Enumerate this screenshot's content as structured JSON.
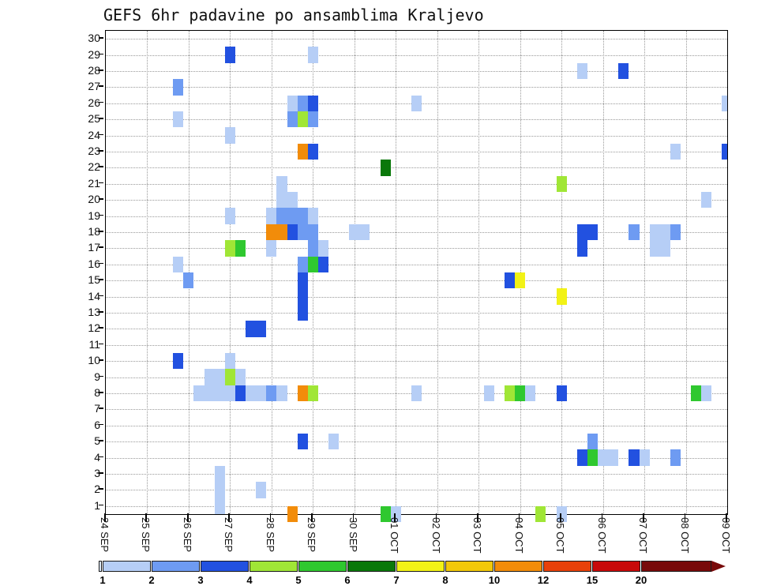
{
  "chart_data": {
    "type": "heatmap",
    "title": "GEFS 6hr padavine po ansamblima Kraljevo",
    "description": "GEFS ensemble 6-hour precipitation per member, Kraljevo; x = time (6h steps), y = ensemble member, color = precipitation amount (mm)",
    "x_axis": {
      "labels": [
        "24 SEP",
        "25 SEP",
        "26 SEP",
        "27 SEP",
        "28 SEP",
        "29 SEP",
        "30 SEP",
        "01 OCT",
        "02 OCT",
        "03 OCT",
        "04 OCT",
        "05 OCT",
        "06 OCT",
        "07 OCT",
        "08 OCT",
        "09 OCT"
      ],
      "steps_per_day": 4,
      "total_steps": 60
    },
    "y_axis": {
      "labels": [
        "1",
        "2",
        "3",
        "4",
        "5",
        "6",
        "7",
        "8",
        "9",
        "10",
        "11",
        "12",
        "13",
        "14",
        "15",
        "16",
        "17",
        "18",
        "19",
        "20",
        "21",
        "22",
        "23",
        "24",
        "25",
        "26",
        "27",
        "28",
        "29",
        "30"
      ],
      "min": 1,
      "max": 30
    },
    "colorbar": {
      "values": [
        "1",
        "2",
        "3",
        "4",
        "5",
        "6",
        "7",
        "8",
        "10",
        "12",
        "15",
        "20"
      ],
      "colors": [
        "#b6cef6",
        "#6e9bf2",
        "#2251e0",
        "#a0e636",
        "#2fc82f",
        "#0a780a",
        "#f2f216",
        "#f2c80a",
        "#f28c0a",
        "#e8410a",
        "#c80a0a",
        "#780a0a"
      ],
      "underflow": "#dce8fa"
    },
    "grid": {
      "horizontal": "dotted per member row",
      "vertical": "dotted per day"
    },
    "cells": [
      [
        12,
        29,
        3
      ],
      [
        20,
        29,
        1
      ],
      [
        46,
        28,
        1
      ],
      [
        50,
        28,
        3
      ],
      [
        7,
        27,
        2
      ],
      [
        18,
        26,
        1
      ],
      [
        19,
        26,
        2
      ],
      [
        20,
        26,
        3
      ],
      [
        30,
        26,
        1
      ],
      [
        60,
        26,
        1
      ],
      [
        7,
        25,
        1
      ],
      [
        18,
        25,
        2
      ],
      [
        19,
        25,
        4
      ],
      [
        20,
        25,
        2
      ],
      [
        12,
        24,
        1
      ],
      [
        19,
        23,
        10
      ],
      [
        20,
        23,
        3
      ],
      [
        55,
        23,
        1
      ],
      [
        60,
        23,
        3
      ],
      [
        27,
        22,
        6
      ],
      [
        17,
        21,
        1
      ],
      [
        44,
        21,
        4
      ],
      [
        17,
        20,
        1
      ],
      [
        18,
        20,
        1
      ],
      [
        58,
        20,
        1
      ],
      [
        12,
        19,
        1
      ],
      [
        16,
        19,
        1
      ],
      [
        17,
        19,
        2
      ],
      [
        18,
        19,
        2
      ],
      [
        19,
        19,
        2
      ],
      [
        20,
        19,
        1
      ],
      [
        16,
        18,
        10
      ],
      [
        17,
        18,
        10
      ],
      [
        18,
        18,
        3
      ],
      [
        19,
        18,
        2
      ],
      [
        20,
        18,
        2
      ],
      [
        24,
        18,
        1
      ],
      [
        25,
        18,
        1
      ],
      [
        46,
        18,
        3
      ],
      [
        47,
        18,
        3
      ],
      [
        51,
        18,
        2
      ],
      [
        53,
        18,
        1
      ],
      [
        54,
        18,
        1
      ],
      [
        55,
        18,
        2
      ],
      [
        12,
        17,
        4
      ],
      [
        13,
        17,
        5
      ],
      [
        16,
        17,
        1
      ],
      [
        20,
        17,
        2
      ],
      [
        21,
        17,
        1
      ],
      [
        46,
        17,
        3
      ],
      [
        53,
        17,
        1
      ],
      [
        54,
        17,
        1
      ],
      [
        7,
        16,
        1
      ],
      [
        19,
        16,
        2
      ],
      [
        20,
        16,
        5
      ],
      [
        21,
        16,
        3
      ],
      [
        8,
        15,
        2
      ],
      [
        19,
        15,
        3
      ],
      [
        39,
        15,
        3
      ],
      [
        40,
        15,
        7
      ],
      [
        19,
        14,
        3
      ],
      [
        44,
        14,
        7
      ],
      [
        19,
        13,
        3
      ],
      [
        14,
        12,
        3
      ],
      [
        15,
        12,
        3
      ],
      [
        7,
        10,
        3
      ],
      [
        12,
        10,
        1
      ],
      [
        10,
        9,
        1
      ],
      [
        11,
        9,
        1
      ],
      [
        12,
        9,
        4
      ],
      [
        13,
        9,
        1
      ],
      [
        9,
        8,
        1
      ],
      [
        10,
        8,
        1
      ],
      [
        11,
        8,
        1
      ],
      [
        12,
        8,
        1
      ],
      [
        13,
        8,
        3
      ],
      [
        14,
        8,
        1
      ],
      [
        15,
        8,
        1
      ],
      [
        16,
        8,
        2
      ],
      [
        17,
        8,
        1
      ],
      [
        19,
        8,
        10
      ],
      [
        20,
        8,
        4
      ],
      [
        30,
        8,
        1
      ],
      [
        37,
        8,
        1
      ],
      [
        39,
        8,
        4
      ],
      [
        40,
        8,
        5
      ],
      [
        41,
        8,
        1
      ],
      [
        44,
        8,
        3
      ],
      [
        57,
        8,
        5
      ],
      [
        58,
        8,
        1
      ],
      [
        19,
        5,
        3
      ],
      [
        22,
        5,
        1
      ],
      [
        47,
        5,
        2
      ],
      [
        46,
        4,
        3
      ],
      [
        47,
        4,
        5
      ],
      [
        48,
        4,
        1
      ],
      [
        49,
        4,
        1
      ],
      [
        51,
        4,
        3
      ],
      [
        52,
        4,
        1
      ],
      [
        55,
        4,
        2
      ],
      [
        11,
        3,
        1
      ],
      [
        11,
        2,
        1
      ],
      [
        15,
        2,
        1
      ],
      [
        11,
        1,
        1
      ],
      [
        18,
        0,
        10
      ],
      [
        27,
        0,
        5
      ],
      [
        28,
        0,
        1
      ],
      [
        42,
        0,
        4
      ],
      [
        44,
        0,
        1
      ]
    ]
  }
}
